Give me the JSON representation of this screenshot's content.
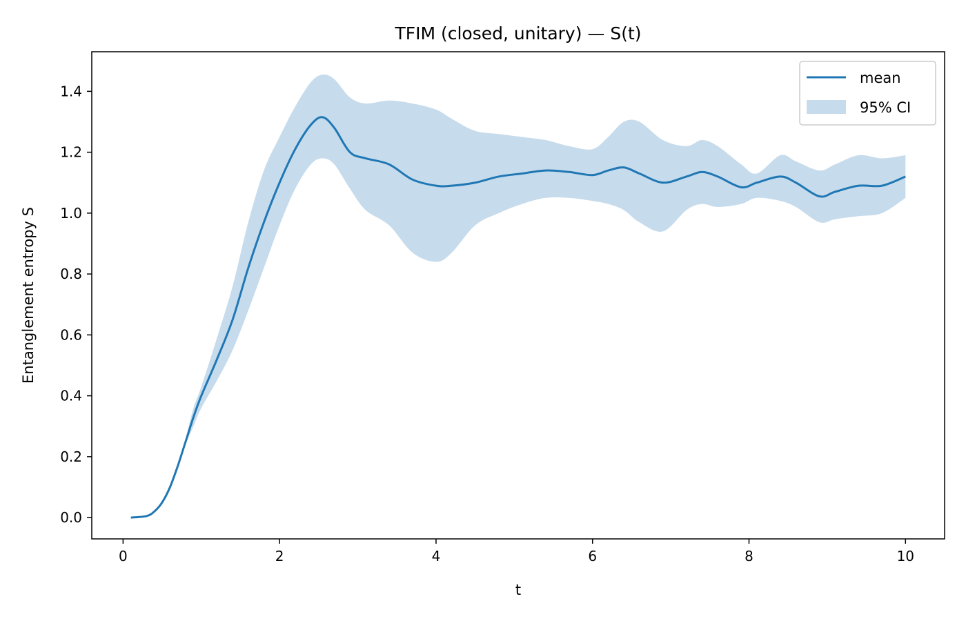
{
  "chart_data": {
    "type": "line",
    "title": "TFIM (closed, unitary) — S(t)",
    "xlabel": "t",
    "ylabel": "Entanglement entropy S",
    "xlim": [
      -0.4,
      10.5
    ],
    "ylim": [
      -0.07,
      1.53
    ],
    "xticks": [
      0,
      2,
      4,
      6,
      8,
      10
    ],
    "xtick_labels": [
      "0",
      "2",
      "4",
      "6",
      "8",
      "10"
    ],
    "yticks": [
      0.0,
      0.2,
      0.4,
      0.6,
      0.8,
      1.0,
      1.2,
      1.4
    ],
    "ytick_labels": [
      "0.0",
      "0.2",
      "0.4",
      "0.6",
      "0.8",
      "1.0",
      "1.2",
      "1.4"
    ],
    "grid": false,
    "legend_position": "top-right",
    "colors": {
      "mean": "#1f77b4",
      "ci": "#c6dbec"
    },
    "series": [
      {
        "name": "mean",
        "x": [
          0.1,
          0.3,
          0.4,
          0.5,
          0.6,
          0.7,
          0.8,
          0.9,
          1.0,
          1.2,
          1.4,
          1.6,
          1.8,
          2.0,
          2.2,
          2.4,
          2.55,
          2.7,
          2.9,
          3.1,
          3.4,
          3.7,
          4.0,
          4.2,
          4.5,
          4.8,
          5.1,
          5.4,
          5.7,
          6.0,
          6.2,
          6.4,
          6.6,
          6.9,
          7.2,
          7.4,
          7.6,
          7.9,
          8.1,
          8.4,
          8.6,
          8.9,
          9.1,
          9.4,
          9.7,
          10.0
        ],
        "y": [
          0.0,
          0.005,
          0.02,
          0.05,
          0.1,
          0.17,
          0.25,
          0.33,
          0.4,
          0.52,
          0.65,
          0.82,
          0.97,
          1.1,
          1.21,
          1.29,
          1.315,
          1.28,
          1.2,
          1.18,
          1.16,
          1.11,
          1.09,
          1.09,
          1.1,
          1.12,
          1.13,
          1.14,
          1.135,
          1.125,
          1.14,
          1.15,
          1.13,
          1.1,
          1.12,
          1.135,
          1.12,
          1.085,
          1.1,
          1.12,
          1.1,
          1.055,
          1.07,
          1.09,
          1.09,
          1.12
        ]
      },
      {
        "name": "95% CI",
        "x": [
          0.1,
          0.3,
          0.4,
          0.5,
          0.6,
          0.7,
          0.8,
          0.9,
          1.0,
          1.2,
          1.4,
          1.6,
          1.8,
          2.0,
          2.2,
          2.4,
          2.55,
          2.7,
          2.9,
          3.1,
          3.4,
          3.7,
          4.0,
          4.2,
          4.5,
          4.8,
          5.1,
          5.4,
          5.7,
          6.0,
          6.2,
          6.4,
          6.6,
          6.9,
          7.2,
          7.4,
          7.6,
          7.9,
          8.1,
          8.4,
          8.6,
          8.9,
          9.1,
          9.4,
          9.7,
          10.0
        ],
        "lower": [
          0.0,
          0.005,
          0.02,
          0.05,
          0.1,
          0.17,
          0.24,
          0.3,
          0.36,
          0.45,
          0.55,
          0.68,
          0.82,
          0.96,
          1.08,
          1.16,
          1.18,
          1.16,
          1.08,
          1.01,
          0.96,
          0.87,
          0.84,
          0.87,
          0.96,
          1.0,
          1.03,
          1.05,
          1.05,
          1.04,
          1.03,
          1.01,
          0.97,
          0.94,
          1.01,
          1.03,
          1.02,
          1.03,
          1.05,
          1.04,
          1.02,
          0.97,
          0.98,
          0.99,
          1.0,
          1.05
        ],
        "upper": [
          0.0,
          0.005,
          0.02,
          0.05,
          0.1,
          0.17,
          0.26,
          0.36,
          0.43,
          0.59,
          0.76,
          0.97,
          1.14,
          1.25,
          1.35,
          1.43,
          1.455,
          1.44,
          1.38,
          1.36,
          1.37,
          1.36,
          1.34,
          1.31,
          1.27,
          1.26,
          1.25,
          1.24,
          1.22,
          1.21,
          1.25,
          1.3,
          1.3,
          1.24,
          1.22,
          1.24,
          1.22,
          1.16,
          1.13,
          1.19,
          1.17,
          1.14,
          1.16,
          1.19,
          1.18,
          1.19
        ]
      }
    ]
  }
}
